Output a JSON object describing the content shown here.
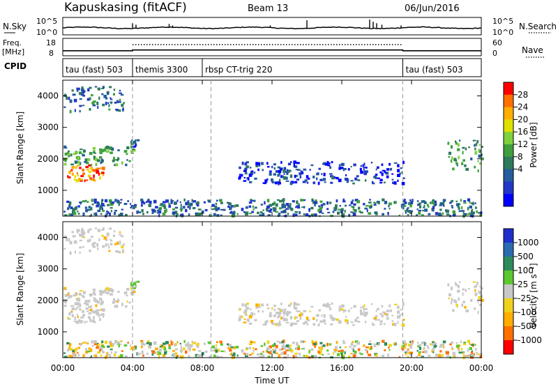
{
  "header": {
    "station": "Kapuskasing (fitACF)",
    "beam": "Beam 13",
    "date": "06/Jun/2016"
  },
  "top_panels": {
    "nsky_label": "N.Sky",
    "nsky_ticks": [
      "10^5",
      "10^0"
    ],
    "nsky_right_ticks": [
      "10^5",
      "10^0"
    ],
    "nsearch_label": "N.Search",
    "freq_label_line1": "Freq.",
    "freq_label_line2": "[MHz]",
    "freq_ticks": [
      "18",
      "8"
    ],
    "nave_ticks": [
      "60",
      "0"
    ],
    "nave_label": "Nave",
    "cpid_label": "CPID",
    "cpid_segments": [
      {
        "label": "tau (fast) 503",
        "start_hr": 0.0,
        "end_hr": 4.0
      },
      {
        "label": "themis 3300",
        "start_hr": 4.0,
        "end_hr": 8.0
      },
      {
        "label": "rbsp CT-trig 220",
        "start_hr": 8.0,
        "end_hr": 19.5
      },
      {
        "label": "tau (fast) 503",
        "start_hr": 19.5,
        "end_hr": 24.0
      }
    ]
  },
  "axes": {
    "y_label": "Slant Range [km]",
    "y_ticks": [
      "1000",
      "2000",
      "3000",
      "4000"
    ],
    "x_label": "Time UT",
    "x_ticks": [
      "00:00",
      "04:00",
      "08:00",
      "12:00",
      "16:00",
      "20:00",
      "00:00"
    ]
  },
  "colorbars": {
    "power": {
      "label": "Power [dB]",
      "ticks": [
        "28",
        "24",
        "20",
        "16",
        "12",
        "8",
        "4"
      ],
      "colors": [
        "#ff0000",
        "#ff6f00",
        "#ffae00",
        "#dfe000",
        "#7ed13c",
        "#3ea03c",
        "#2e7a5a",
        "#245c9c",
        "#2237c8",
        "#0000ff"
      ]
    },
    "velocity": {
      "label": "Velocity [m s⁻¹]",
      "ticks": [
        "1000",
        "500",
        "100",
        "25",
        "-25",
        "-100",
        "-500",
        "-1000"
      ],
      "colors": [
        "#1f2fcc",
        "#2c6bb0",
        "#2e8a5a",
        "#5ac82e",
        "#c8c8c8",
        "#f0d21e",
        "#ffae00",
        "#ff6f00",
        "#ff0000"
      ]
    }
  },
  "chart_data": {
    "type": "heatmap",
    "title": "Kapuskasing (fitACF)",
    "xlabel": "Time UT",
    "ylabel": "Slant Range [km]",
    "xlim": [
      "00:00",
      "00:00"
    ],
    "ylim": [
      180,
      4500
    ],
    "panels": [
      "Power [dB]",
      "Velocity [m s⁻¹]"
    ],
    "gray_dashed_lines_hr": [
      4.0,
      8.5,
      19.5
    ],
    "nsky_trace_level": "~10^2 with spikes near 04:00, 06:00, 14:00, 17:30-18:00",
    "freq_mhz_by_segment": [
      10.5,
      11.0,
      11.0,
      10.5
    ],
    "nave_dotted_hr_range": [
      4.0,
      19.5
    ],
    "echo_regions": [
      {
        "t0": 0.0,
        "t1": 2.3,
        "r0": 1300,
        "r1": 1800,
        "power_db": 26,
        "velocity": "~0"
      },
      {
        "t0": 0.0,
        "t1": 4.0,
        "r0": 1800,
        "r1": 2400,
        "power_db": 14,
        "velocity": "~0"
      },
      {
        "t0": 0.0,
        "t1": 3.6,
        "r0": 3500,
        "r1": 4300,
        "power_db": 10,
        "velocity": "~0"
      },
      {
        "t0": 3.8,
        "t1": 4.3,
        "r0": 2300,
        "r1": 2600,
        "power_db": 8,
        "velocity": "~25"
      },
      {
        "t0": 0.0,
        "t1": 24.0,
        "r0": 180,
        "r1": 700,
        "power_db": 10,
        "velocity": "mixed"
      },
      {
        "t0": 10.0,
        "t1": 19.5,
        "r0": 1200,
        "r1": 1900,
        "power_db": 6,
        "velocity": "~0"
      },
      {
        "t0": 22.0,
        "t1": 24.0,
        "r0": 1600,
        "r1": 2600,
        "power_db": 14,
        "velocity": "~0"
      }
    ]
  }
}
